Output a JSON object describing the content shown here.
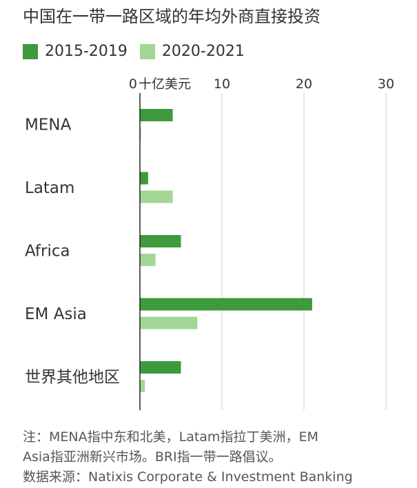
{
  "title": "中国在一带一路区域的年均外商直接投资",
  "colors": {
    "dark": "#3d9a3d",
    "light": "#a3d695",
    "axis": "#222222",
    "grid": "#dddddd"
  },
  "chart_data": {
    "type": "bar",
    "orientation": "horizontal",
    "categories": [
      "MENA",
      "Latam",
      "Africa",
      "EM Asia",
      "世界其他地区"
    ],
    "series": [
      {
        "name": "2015-2019",
        "color": "#3d9a3d",
        "values": [
          4.0,
          1.0,
          5.0,
          21.0,
          5.0
        ]
      },
      {
        "name": "2020-2021",
        "color": "#a3d695",
        "values": [
          0.1,
          4.0,
          1.9,
          7.0,
          0.6
        ]
      }
    ],
    "xticks": [
      "0",
      "10",
      "20",
      "30"
    ],
    "xunit": "十亿美元",
    "xlim": [
      0,
      30
    ],
    "grid": true,
    "legend": "top-left"
  },
  "notes": [
    "注：MENA指中东和北美，Latam指拉丁美洲，EM",
    "Asia指亚洲新兴市场。BRI指一带一路倡议。",
    "数据来源：Natixis Corporate & Investment Banking"
  ]
}
